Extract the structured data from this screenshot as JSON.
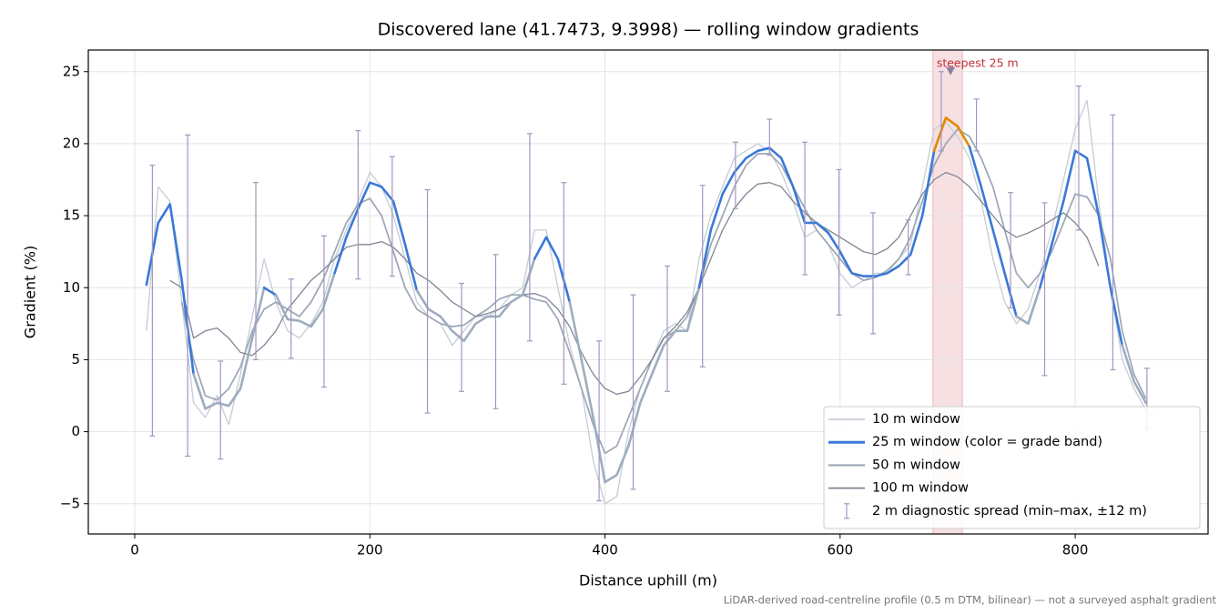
{
  "chart_data": {
    "type": "line",
    "title": "Discovered lane (41.7473, 9.3998) — rolling window gradients",
    "xlabel": "Distance uphill (m)",
    "ylabel": "Gradient (%)",
    "footnote": "LiDAR-derived road-centreline profile (0.5 m DTM, bilinear) — not a surveyed asphalt gradient",
    "x": [
      0,
      10,
      20,
      30,
      40,
      50,
      60,
      70,
      80,
      90,
      100,
      110,
      120,
      130,
      140,
      150,
      160,
      170,
      180,
      190,
      200,
      210,
      220,
      230,
      240,
      250,
      260,
      270,
      280,
      290,
      300,
      310,
      320,
      330,
      340,
      350,
      360,
      370,
      380,
      390,
      400,
      410,
      420,
      430,
      440,
      450,
      460,
      470,
      480,
      490,
      500,
      510,
      520,
      530,
      540,
      550,
      560,
      570,
      580,
      590,
      600,
      610,
      620,
      630,
      640,
      650,
      660,
      670,
      680,
      690,
      700,
      710,
      720,
      730,
      740,
      750,
      760,
      770,
      780,
      790,
      800,
      810,
      820,
      830,
      840,
      850,
      860,
      870
    ],
    "series": [
      {
        "name": "10 m window",
        "color": "#c6ccd5",
        "values": [
          null,
          7,
          17,
          16,
          9,
          2,
          1,
          2.5,
          0.5,
          4,
          8,
          12,
          9,
          7,
          6.5,
          7.5,
          9,
          12,
          14,
          16,
          18,
          17,
          15,
          12,
          9,
          8,
          7.5,
          6,
          7,
          8,
          8,
          8.5,
          9.5,
          10,
          14,
          14,
          10,
          6,
          3,
          -2,
          -5,
          -4.5,
          0,
          3,
          5,
          7,
          7.5,
          7,
          12,
          15,
          17,
          19,
          19.5,
          20,
          19.5,
          18,
          16,
          13.5,
          14,
          13,
          11,
          10,
          10.5,
          11,
          11,
          12,
          13,
          17,
          21,
          21.5,
          20.5,
          19,
          16,
          12,
          9,
          7.5,
          8.5,
          11,
          14,
          17.5,
          21,
          23,
          16,
          10,
          5,
          3,
          1.5,
          1
        ]
      },
      {
        "name": "25 m window (color = grade band)",
        "color": "#3a78d8",
        "values": [
          null,
          10.2,
          14.5,
          15.8,
          10.5,
          4,
          1.6,
          2,
          1.8,
          3,
          6.5,
          10,
          9.5,
          7.8,
          7.7,
          7.3,
          8.5,
          11,
          13.5,
          15.5,
          17.3,
          17,
          16,
          13,
          9.8,
          8.5,
          8,
          7,
          6.3,
          7.5,
          8,
          8,
          9,
          9.5,
          12,
          13.5,
          12,
          9,
          5,
          1,
          -3.5,
          -3,
          -1,
          2,
          4,
          6,
          7,
          7,
          10,
          14,
          16.5,
          18,
          19,
          19.5,
          19.7,
          19,
          17,
          14.5,
          14.5,
          13.8,
          12.5,
          11,
          10.8,
          10.8,
          11,
          11.5,
          12.3,
          15,
          19.5,
          21.8,
          21.2,
          19.8,
          17,
          14,
          11,
          8,
          7.5,
          10,
          13,
          16,
          19.5,
          19,
          15,
          10,
          6,
          3.5,
          2,
          null
        ],
        "colors": [
          "#3a78d8",
          "#3a78d8",
          "#3a78d8",
          "#3a78d8",
          "#3a78d8",
          "#9dadbf",
          "#9dadbf",
          "#9dadbf",
          "#9dadbf",
          "#9dadbf",
          "#9dadbf",
          "#3a78d8",
          "#9dadbf",
          "#9dadbf",
          "#9dadbf",
          "#9dadbf",
          "#9dadbf",
          "#3a78d8",
          "#3a78d8",
          "#3a78d8",
          "#3a78d8",
          "#3a78d8",
          "#3a78d8",
          "#3a78d8",
          "#9dadbf",
          "#9dadbf",
          "#9dadbf",
          "#9dadbf",
          "#9dadbf",
          "#9dadbf",
          "#9dadbf",
          "#9dadbf",
          "#9dadbf",
          "#9dadbf",
          "#3a78d8",
          "#3a78d8",
          "#3a78d8",
          "#9dadbf",
          "#9dadbf",
          "#9dadbf",
          "#9dadbf",
          "#9dadbf",
          "#9dadbf",
          "#9dadbf",
          "#9dadbf",
          "#9dadbf",
          "#9dadbf",
          "#9dadbf",
          "#3a78d8",
          "#3a78d8",
          "#3a78d8",
          "#3a78d8",
          "#3a78d8",
          "#3a78d8",
          "#3a78d8",
          "#3a78d8",
          "#3a78d8",
          "#3a78d8",
          "#3a78d8",
          "#3a78d8",
          "#3a78d8",
          "#3a78d8",
          "#3a78d8",
          "#3a78d8",
          "#3a78d8",
          "#3a78d8",
          "#3a78d8",
          "#3a78d8",
          "#e08a00",
          "#e08a00",
          "#e08a00",
          "#3a78d8",
          "#3a78d8",
          "#3a78d8",
          "#3a78d8",
          "#9dadbf",
          "#9dadbf",
          "#3a78d8",
          "#3a78d8",
          "#3a78d8",
          "#3a78d8",
          "#3a78d8",
          "#3a78d8",
          "#3a78d8",
          "#9dadbf",
          "#9dadbf",
          "#9dadbf",
          "#9dadbf"
        ]
      },
      {
        "name": "50 m window",
        "color": "#9ba6b6",
        "values": [
          null,
          null,
          null,
          null,
          9,
          5,
          2.5,
          2.2,
          3,
          4.5,
          7,
          8.5,
          9,
          8.5,
          8,
          9,
          10.5,
          12.5,
          14.5,
          15.8,
          16.2,
          15,
          12.5,
          10,
          8.5,
          8,
          7.5,
          7.3,
          7.4,
          8,
          8.5,
          9.2,
          9.5,
          9.5,
          9.2,
          9,
          7.8,
          5.5,
          3,
          0.5,
          -1.5,
          -1,
          1,
          3,
          5,
          6.5,
          7,
          8,
          10,
          13,
          15,
          17,
          18.5,
          19.3,
          19.3,
          18.5,
          17,
          15.5,
          14,
          13,
          12,
          11,
          10.5,
          10.7,
          11.2,
          12,
          13.5,
          16,
          18.5,
          20,
          21,
          20.5,
          19,
          17,
          14,
          11,
          10,
          11,
          12.5,
          14.5,
          16.5,
          16.3,
          15,
          12,
          7,
          4,
          2.3,
          null
        ]
      },
      {
        "name": "100 m window",
        "color": "#7f8693",
        "values": [
          null,
          null,
          null,
          10.5,
          10,
          6.5,
          7,
          7.2,
          6.5,
          5.5,
          5.3,
          6,
          7,
          8.5,
          9.5,
          10.5,
          11.2,
          12,
          12.8,
          13,
          13,
          13.2,
          12.8,
          12,
          11,
          10.5,
          9.8,
          9,
          8.5,
          8,
          8.2,
          8.5,
          9,
          9.5,
          9.6,
          9.3,
          8.5,
          7.3,
          5.5,
          4,
          3,
          2.6,
          2.8,
          3.8,
          5,
          6.5,
          7.3,
          8.3,
          10,
          12,
          14,
          15.5,
          16.5,
          17.2,
          17.3,
          17,
          16,
          15.2,
          14.5,
          14,
          13.5,
          13,
          12.5,
          12.3,
          12.7,
          13.5,
          15,
          16.5,
          17.5,
          18,
          17.7,
          17,
          16,
          15,
          14,
          13.5,
          13.8,
          14.2,
          14.7,
          15.2,
          14.5,
          13.5,
          11.5,
          null,
          null,
          null,
          null,
          null
        ]
      }
    ],
    "errorbars": {
      "name": "2 m diagnostic spread (min–max, ±12 m)",
      "color": "#a397bf",
      "x": [
        15,
        45,
        73,
        103,
        133,
        161,
        190,
        219,
        249,
        278,
        307,
        336,
        365,
        395,
        424,
        453,
        483,
        511,
        540,
        570,
        599,
        628,
        658,
        686,
        716,
        745,
        774,
        803,
        832,
        861
      ],
      "low": [
        -0.3,
        -1.7,
        -1.9,
        5,
        5.1,
        3.1,
        10.6,
        10.8,
        1.3,
        2.8,
        1.6,
        6.3,
        3.3,
        -4.8,
        -4,
        2.8,
        4.5,
        15.5,
        19.2,
        10.9,
        8.1,
        6.8,
        10.9,
        19.5,
        19.5,
        8.6,
        3.9,
        14,
        4.3,
        0.2
      ],
      "high": [
        18.5,
        20.6,
        4.9,
        17.3,
        10.6,
        13.6,
        20.9,
        19.1,
        16.8,
        10.3,
        12.3,
        20.7,
        17.3,
        6.3,
        9.5,
        11.5,
        17.1,
        20.1,
        21.7,
        20.1,
        18.2,
        15.2,
        14.7,
        25,
        23.1,
        16.6,
        15.9,
        24,
        22,
        4.4
      ]
    },
    "highlight": {
      "x": [
        679,
        704
      ],
      "color": "#e9a5ad",
      "label": "steepest 25 m",
      "label_color": "#c0303a",
      "marker": {
        "x": 694,
        "y": 25,
        "color": "#8a80a2"
      }
    },
    "xlim": [
      -39.5,
      913
    ],
    "ylim": [
      -7.1,
      26.5
    ],
    "xticks": [
      0,
      200,
      400,
      600,
      800
    ],
    "yticks": [
      {
        "value": -5,
        "label": "−5"
      },
      0,
      5,
      10,
      15,
      20,
      25
    ],
    "grid": true,
    "legend": "lower right"
  }
}
